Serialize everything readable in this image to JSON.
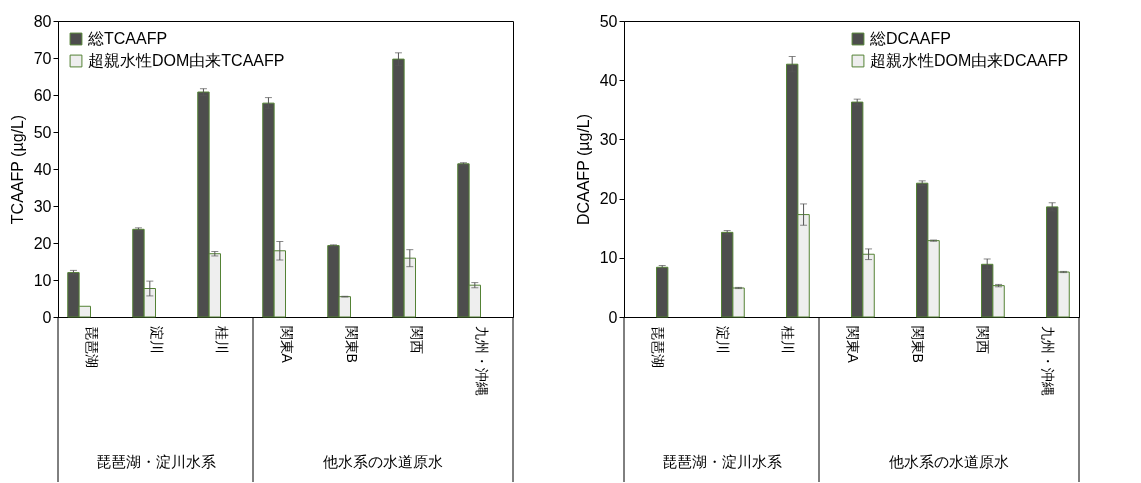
{
  "chart_data": [
    {
      "type": "bar",
      "ylabel": "TCAAFP (µg/L)",
      "categories": [
        "琵琶湖",
        "淀川",
        "桂川",
        "関東A",
        "関東B",
        "関西",
        "九州・沖縄"
      ],
      "ylim": [
        0,
        80
      ],
      "yticks": [
        0,
        10,
        20,
        30,
        40,
        50,
        60,
        70,
        80
      ],
      "legend": "top left",
      "annotations": [
        "琵琶湖・淀川水系",
        "他水系の水道原水"
      ],
      "series": [
        {
          "name": "総TCAAFP",
          "color": "#4d4d4d",
          "values": [
            12.0,
            23.7,
            60.8,
            57.8,
            19.3,
            69.7,
            41.4
          ],
          "errors": [
            0.6,
            0.4,
            0.9,
            1.5,
            0.2,
            1.7,
            0.3
          ]
        },
        {
          "name": "超親水性DOM由来TCAAFP",
          "color": "#eeeeee",
          "values": [
            2.9,
            7.7,
            17.1,
            17.9,
            5.5,
            15.9,
            8.6
          ],
          "errors": [
            null,
            2.0,
            0.6,
            2.5,
            0.1,
            2.3,
            0.7
          ]
        }
      ]
    },
    {
      "type": "bar",
      "ylabel": "DCAAFP (µg/L)",
      "categories": [
        "琵琶湖",
        "淀川",
        "桂川",
        "関東A",
        "関東B",
        "関西",
        "九州・沖縄"
      ],
      "ylim": [
        0,
        50
      ],
      "yticks": [
        0,
        10,
        20,
        30,
        40,
        50
      ],
      "legend": "top right",
      "annotations": [
        "琵琶湖・淀川水系",
        "他水系の水道原水"
      ],
      "series": [
        {
          "name": "総DCAAFP",
          "color": "#4d4d4d",
          "values": [
            8.4,
            14.3,
            42.7,
            36.3,
            22.6,
            8.9,
            18.6
          ],
          "errors": [
            0.3,
            0.3,
            1.3,
            0.5,
            0.4,
            0.9,
            0.7
          ]
        },
        {
          "name": "超親水性DOM由来DCAAFP",
          "color": "#eeeeee",
          "values": [
            null,
            4.9,
            17.3,
            10.6,
            12.9,
            5.3,
            7.6
          ],
          "errors": [
            null,
            0.1,
            1.8,
            0.9,
            0.1,
            0.2,
            0.1
          ]
        }
      ]
    }
  ]
}
